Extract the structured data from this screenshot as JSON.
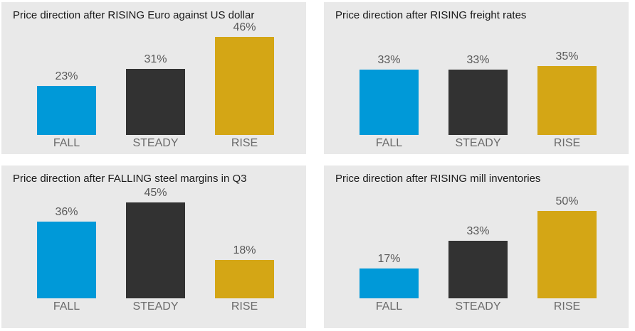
{
  "colors": {
    "page_background": "#ffffff",
    "panel_background": "#e9e9e9",
    "title_text": "#1a1a1a",
    "value_label_text": "#595959",
    "category_label_text": "#6b6b6b",
    "fall_bar": "#0099d8",
    "steady_bar": "#323232",
    "rise_bar": "#d4a615"
  },
  "chart_data": [
    {
      "type": "bar",
      "title": "Price direction after RISING Euro against US dollar",
      "categories": [
        "FALL",
        "STEADY",
        "RISE"
      ],
      "values": [
        23,
        31,
        46
      ],
      "value_labels": [
        "23%",
        "31%",
        "46%"
      ],
      "xlabel": "",
      "ylabel": "",
      "ylim": [
        0,
        50
      ],
      "grid": false,
      "legend": false,
      "bar_colors": [
        "#0099d8",
        "#323232",
        "#d4a615"
      ]
    },
    {
      "type": "bar",
      "title": "Price direction after RISING freight rates",
      "categories": [
        "FALL",
        "STEADY",
        "RISE"
      ],
      "values": [
        33,
        33,
        35
      ],
      "value_labels": [
        "33%",
        "33%",
        "35%"
      ],
      "xlabel": "",
      "ylabel": "",
      "ylim": [
        0,
        54
      ],
      "grid": false,
      "legend": false,
      "bar_colors": [
        "#0099d8",
        "#323232",
        "#d4a615"
      ]
    },
    {
      "type": "bar",
      "title": "Price direction after FALLING steel margins in Q3",
      "categories": [
        "FALL",
        "STEADY",
        "RISE"
      ],
      "values": [
        36,
        45,
        18
      ],
      "value_labels": [
        "36%",
        "45%",
        "18%"
      ],
      "xlabel": "",
      "ylabel": "",
      "ylim": [
        0,
        50
      ],
      "grid": false,
      "legend": false,
      "bar_colors": [
        "#0099d8",
        "#323232",
        "#d4a615"
      ]
    },
    {
      "type": "bar",
      "title": "Price direction after RISING mill inventories",
      "categories": [
        "FALL",
        "STEADY",
        "RISE"
      ],
      "values": [
        17,
        33,
        50
      ],
      "value_labels": [
        "17%",
        "33%",
        "50%"
      ],
      "xlabel": "",
      "ylabel": "",
      "ylim": [
        0,
        61
      ],
      "grid": false,
      "legend": false,
      "bar_colors": [
        "#0099d8",
        "#323232",
        "#d4a615"
      ]
    }
  ]
}
